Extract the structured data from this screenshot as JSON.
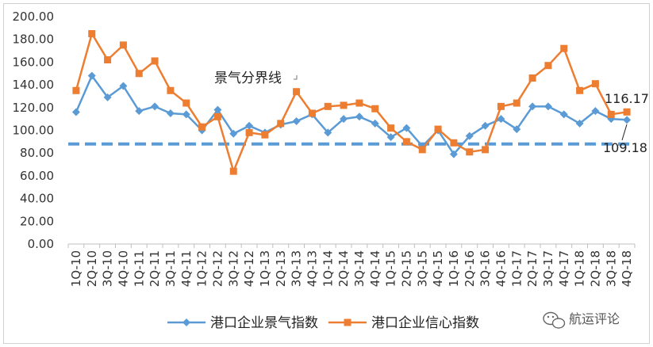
{
  "chart_data": {
    "type": "line",
    "title": "",
    "xlabel": "",
    "ylabel": "",
    "ylim": [
      0,
      200
    ],
    "yticks": [
      "0.00",
      "20.00",
      "40.00",
      "60.00",
      "80.00",
      "100.00",
      "120.00",
      "140.00",
      "160.00",
      "180.00",
      "200.00"
    ],
    "categories": [
      "1Q-10",
      "2Q-10",
      "3Q-10",
      "4Q-10",
      "1Q-11",
      "2Q-11",
      "3Q-11",
      "4Q-11",
      "1Q-12",
      "2Q-12",
      "3Q-12",
      "4Q-12",
      "1Q-13",
      "2Q-13",
      "3Q-13",
      "4Q-13",
      "1Q-14",
      "2Q-14",
      "3Q-14",
      "4Q-14",
      "1Q-15",
      "2Q-15",
      "3Q-15",
      "4Q-15",
      "1Q-16",
      "2Q-16",
      "3Q-16",
      "4Q-16",
      "1Q-17",
      "2Q-17",
      "3Q-17",
      "4Q-17",
      "1Q-18",
      "2Q-18",
      "3Q-18",
      "4Q-18"
    ],
    "series": [
      {
        "name": "港口企业景气指数",
        "color": "#5b9bd5",
        "marker": "diamond",
        "values": [
          116,
          148,
          129,
          139,
          117,
          121,
          115,
          114,
          100,
          118,
          97,
          104,
          98,
          105,
          108,
          114,
          98,
          110,
          112,
          106,
          94,
          102,
          86,
          100,
          79,
          95,
          104,
          110,
          101,
          121,
          121,
          114,
          106,
          117,
          110,
          109.18
        ]
      },
      {
        "name": "港口企业信心指数",
        "color": "#ed7d31",
        "marker": "square",
        "values": [
          135,
          185,
          162,
          175,
          150,
          161,
          135,
          124,
          103,
          112,
          64,
          98,
          96,
          106,
          134,
          115,
          121,
          122,
          124,
          119,
          102,
          90,
          83,
          101,
          89,
          81,
          83,
          121,
          124,
          146,
          157,
          172,
          135,
          141,
          114,
          116.17
        ]
      }
    ],
    "reference_line": {
      "label": "景气分界线",
      "value": 88,
      "color": "#5b9bd5",
      "style": "dashed"
    },
    "annotations": {
      "last_confidence": "116.17",
      "last_prosperity": "109.18"
    },
    "legend": "bottom",
    "grid": false
  },
  "watermark": {
    "text": "航运评论",
    "icon": "wechat-icon"
  }
}
